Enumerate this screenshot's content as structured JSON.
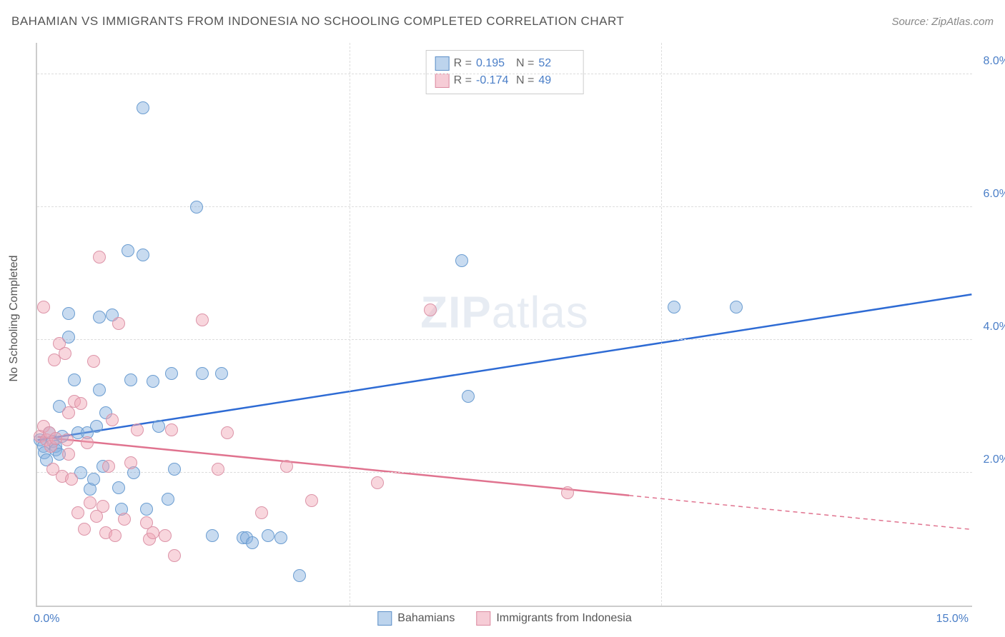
{
  "header": {
    "title": "BAHAMIAN VS IMMIGRANTS FROM INDONESIA NO SCHOOLING COMPLETED CORRELATION CHART",
    "source": "Source: ZipAtlas.com"
  },
  "chart": {
    "type": "scatter",
    "ylabel": "No Schooling Completed",
    "xlim": [
      0,
      15
    ],
    "ylim": [
      0,
      8.5
    ],
    "yticks": [
      {
        "v": 2.0,
        "label": "2.0%"
      },
      {
        "v": 4.0,
        "label": "4.0%"
      },
      {
        "v": 6.0,
        "label": "6.0%"
      },
      {
        "v": 8.0,
        "label": "8.0%"
      }
    ],
    "xticks": {
      "left": "0.0%",
      "right": "15.0%"
    },
    "xgrid": [
      5,
      10
    ],
    "grid_color": "#dddddd",
    "axis_color": "#cccccc",
    "background_color": "#ffffff",
    "watermark": "ZIPatlas",
    "colors": {
      "blue_fill": "rgba(134,176,222,0.45)",
      "blue_stroke": "#6b9dd1",
      "blue_line": "#2e6bd4",
      "pink_fill": "rgba(239,163,180,0.45)",
      "pink_stroke": "#dc94a8",
      "pink_line": "#e0738f",
      "tick_text": "#4a7ec7"
    },
    "series": [
      {
        "key": "blue",
        "name": "Bahamians",
        "R": "0.195",
        "N": "52",
        "trend": {
          "x1": 0,
          "y1": 2.5,
          "x2": 15,
          "y2": 4.7,
          "solid_to_x": 15
        },
        "points": [
          [
            0.05,
            2.5
          ],
          [
            0.1,
            2.4
          ],
          [
            0.12,
            2.3
          ],
          [
            0.15,
            2.2
          ],
          [
            0.2,
            2.6
          ],
          [
            0.25,
            2.48
          ],
          [
            0.3,
            2.4
          ],
          [
            0.3,
            2.35
          ],
          [
            0.35,
            2.28
          ],
          [
            0.4,
            2.55
          ],
          [
            0.35,
            3.0
          ],
          [
            0.5,
            4.4
          ],
          [
            0.5,
            4.05
          ],
          [
            0.6,
            3.4
          ],
          [
            0.65,
            2.6
          ],
          [
            0.7,
            2.0
          ],
          [
            0.8,
            2.6
          ],
          [
            0.85,
            1.75
          ],
          [
            0.9,
            1.9
          ],
          [
            0.95,
            2.7
          ],
          [
            1.0,
            3.25
          ],
          [
            1.0,
            4.35
          ],
          [
            1.05,
            2.1
          ],
          [
            1.1,
            2.9
          ],
          [
            1.2,
            4.38
          ],
          [
            1.3,
            1.78
          ],
          [
            1.35,
            1.45
          ],
          [
            1.45,
            5.35
          ],
          [
            1.5,
            3.4
          ],
          [
            1.55,
            2.0
          ],
          [
            1.7,
            7.5
          ],
          [
            1.7,
            5.28
          ],
          [
            1.75,
            1.45
          ],
          [
            1.85,
            3.38
          ],
          [
            1.95,
            2.7
          ],
          [
            2.1,
            1.6
          ],
          [
            2.15,
            3.5
          ],
          [
            2.2,
            2.05
          ],
          [
            2.55,
            6.0
          ],
          [
            2.65,
            3.5
          ],
          [
            2.8,
            1.05
          ],
          [
            2.95,
            3.5
          ],
          [
            3.3,
            1.02
          ],
          [
            3.35,
            1.02
          ],
          [
            3.45,
            0.95
          ],
          [
            3.7,
            1.05
          ],
          [
            3.9,
            1.02
          ],
          [
            4.2,
            0.45
          ],
          [
            6.8,
            5.2
          ],
          [
            6.9,
            3.15
          ],
          [
            10.2,
            4.5
          ],
          [
            11.2,
            4.5
          ]
        ]
      },
      {
        "key": "pink",
        "name": "Immigrants from Indonesia",
        "R": "-0.174",
        "N": "49",
        "trend": {
          "x1": 0,
          "y1": 2.55,
          "x2": 15,
          "y2": 1.15,
          "solid_to_x": 9.5
        },
        "points": [
          [
            0.05,
            2.55
          ],
          [
            0.1,
            2.7
          ],
          [
            0.1,
            4.5
          ],
          [
            0.15,
            2.5
          ],
          [
            0.2,
            2.6
          ],
          [
            0.22,
            2.4
          ],
          [
            0.25,
            2.05
          ],
          [
            0.28,
            3.7
          ],
          [
            0.3,
            2.52
          ],
          [
            0.35,
            3.95
          ],
          [
            0.4,
            1.95
          ],
          [
            0.45,
            3.8
          ],
          [
            0.48,
            2.5
          ],
          [
            0.5,
            2.28
          ],
          [
            0.5,
            2.9
          ],
          [
            0.55,
            1.9
          ],
          [
            0.6,
            3.08
          ],
          [
            0.65,
            1.4
          ],
          [
            0.7,
            3.05
          ],
          [
            0.75,
            1.15
          ],
          [
            0.8,
            2.45
          ],
          [
            0.85,
            1.55
          ],
          [
            0.9,
            3.68
          ],
          [
            0.95,
            1.35
          ],
          [
            1.0,
            5.25
          ],
          [
            1.05,
            1.5
          ],
          [
            1.1,
            1.1
          ],
          [
            1.15,
            2.1
          ],
          [
            1.2,
            2.8
          ],
          [
            1.25,
            1.05
          ],
          [
            1.3,
            4.25
          ],
          [
            1.4,
            1.3
          ],
          [
            1.5,
            2.15
          ],
          [
            1.6,
            2.65
          ],
          [
            1.75,
            1.25
          ],
          [
            1.8,
            1.0
          ],
          [
            1.85,
            1.1
          ],
          [
            2.05,
            1.05
          ],
          [
            2.15,
            2.65
          ],
          [
            2.2,
            0.75
          ],
          [
            2.65,
            4.3
          ],
          [
            2.9,
            2.05
          ],
          [
            3.05,
            2.6
          ],
          [
            3.6,
            1.4
          ],
          [
            4.0,
            2.1
          ],
          [
            4.4,
            1.58
          ],
          [
            5.45,
            1.85
          ],
          [
            6.3,
            4.45
          ],
          [
            8.5,
            1.7
          ]
        ]
      }
    ],
    "legend_top": {
      "rows": [
        {
          "swatch": "blue",
          "r_label": "R =",
          "r_val": "0.195",
          "n_label": "N =",
          "n_val": "52"
        },
        {
          "swatch": "pink",
          "r_label": "R =",
          "r_val": "-0.174",
          "n_label": "N =",
          "n_val": "49"
        }
      ]
    },
    "legend_bottom": [
      {
        "swatch": "blue",
        "label": "Bahamians"
      },
      {
        "swatch": "pink",
        "label": "Immigrants from Indonesia"
      }
    ]
  }
}
